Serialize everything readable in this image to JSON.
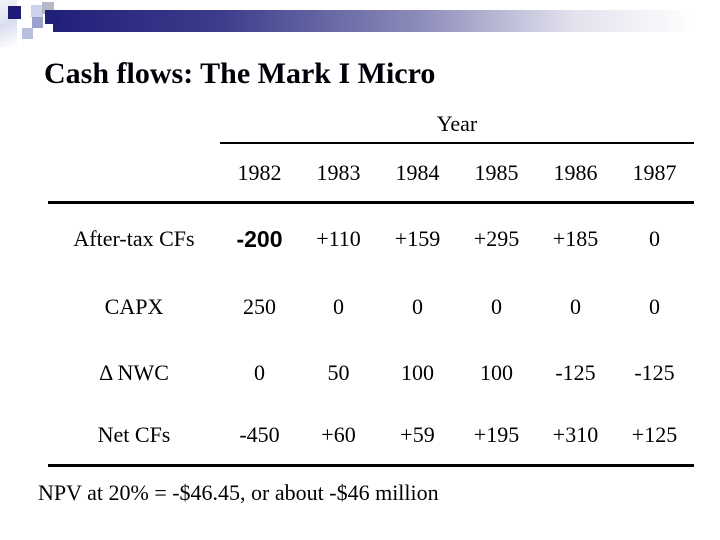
{
  "slide": {
    "title": "Cash flows: The Mark I Micro",
    "footnote": "NPV at 20% = -$46.45, or about -$46 million"
  },
  "table": {
    "header": "Year",
    "years": [
      "1982",
      "1983",
      "1984",
      "1985",
      "1986",
      "1987"
    ],
    "rows": [
      {
        "label": "After-tax CFs",
        "values": [
          "-200",
          "+110",
          "+159",
          "+295",
          "+185",
          "0"
        ]
      },
      {
        "label": "CAPX",
        "values": [
          "250",
          "0",
          "0",
          "0",
          "0",
          "0"
        ]
      },
      {
        "label": "Δ NWC",
        "values": [
          "0",
          "50",
          "100",
          "100",
          "-125",
          "-125"
        ]
      },
      {
        "label": "Net CFs",
        "values": [
          "-450",
          "+60",
          "+59",
          "+195",
          "+310",
          "+125"
        ]
      }
    ]
  },
  "colors": {
    "accent_navy": "#20207a",
    "square_navy": "#1c1c78",
    "text": "#000000",
    "background": "#ffffff"
  }
}
